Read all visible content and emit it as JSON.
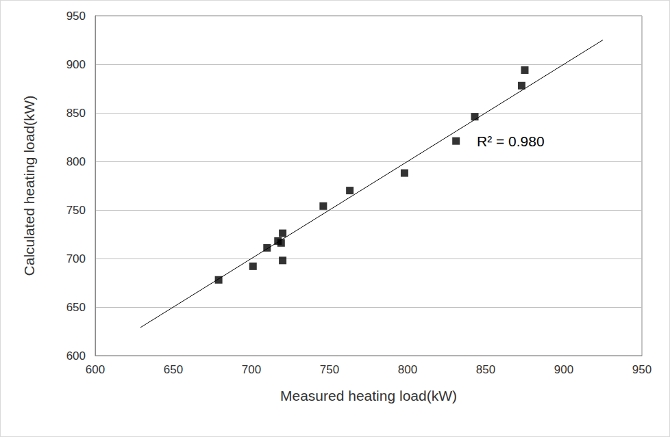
{
  "chart_data": {
    "type": "scatter",
    "x_label": "Measured heating load(kW)",
    "y_label": "Calculated heating load(kW)",
    "xlim": [
      600,
      950
    ],
    "xticks": [
      600,
      650,
      700,
      750,
      800,
      850,
      900,
      950
    ],
    "ylim": [
      600,
      950
    ],
    "yticks": [
      600,
      650,
      700,
      750,
      800,
      850,
      900,
      950
    ],
    "grid": true,
    "annotations": [
      "R² = 0.980"
    ],
    "series": [
      {
        "type": "scatter",
        "color": "#000000",
        "marker": "square",
        "x": [
          679,
          701,
          710,
          717,
          719,
          720,
          720,
          746,
          763,
          798,
          831,
          843,
          873,
          875
        ],
        "values": [
          678,
          692,
          711,
          718,
          716,
          726,
          698,
          754,
          770,
          788,
          821,
          846,
          878,
          894
        ]
      },
      {
        "type": "line",
        "color": "#000000",
        "line_style": "solid",
        "x": [
          629,
          925
        ],
        "values": [
          629,
          925
        ]
      }
    ]
  }
}
